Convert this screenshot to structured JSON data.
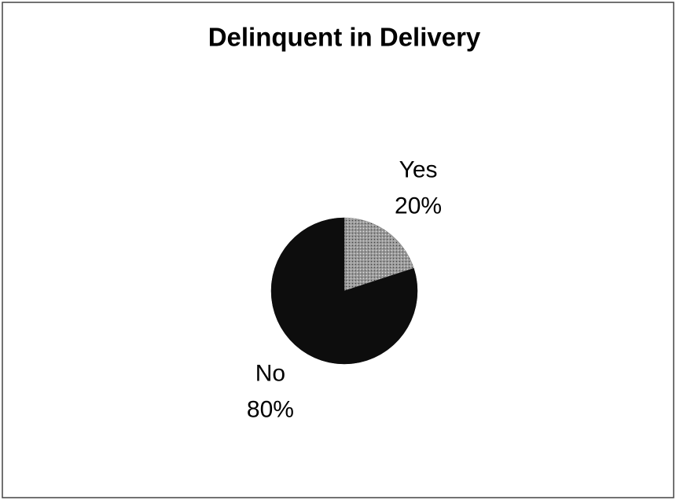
{
  "chart_data": {
    "type": "pie",
    "title": "Delinquent in Delivery",
    "categories": [
      "Yes",
      "No"
    ],
    "values": [
      20,
      80
    ],
    "value_labels": [
      "20%",
      "80%"
    ],
    "colors": [
      "#8a8a8a",
      "#0d0d0d"
    ]
  }
}
